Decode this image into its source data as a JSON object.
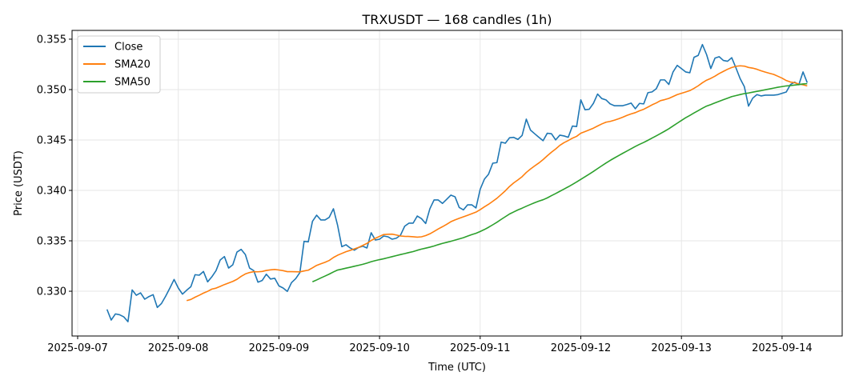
{
  "chart_data": {
    "type": "line",
    "title": "TRXUSDT — 168 candles (1h)",
    "xlabel": "Time (UTC)",
    "ylabel": "Price (USDT)",
    "start": "2025-09-07T07:00",
    "interval_hours": 1,
    "x_tick_labels": [
      "2025-09-07",
      "2025-09-08",
      "2025-09-09",
      "2025-09-10",
      "2025-09-11",
      "2025-09-12",
      "2025-09-13",
      "2025-09-14"
    ],
    "y_ticks": [
      0.33,
      0.335,
      0.34,
      0.345,
      0.35,
      0.355
    ],
    "y_tick_labels": [
      "0.330",
      "0.335",
      "0.340",
      "0.345",
      "0.350",
      "0.355"
    ],
    "ylim": [
      0.32556,
      0.35587
    ],
    "grid": true,
    "legend": {
      "placement": "top-left",
      "entries": [
        "Close",
        "SMA20",
        "SMA50"
      ]
    },
    "colors": {
      "Close": "#1f77b4",
      "SMA20": "#ff7f0e",
      "SMA50": "#2ca02c"
    },
    "sma_windows": {
      "SMA20": 20,
      "SMA50": 50
    },
    "series": [
      {
        "name": "Close",
        "values": [
          0.3282,
          0.32714,
          0.32775,
          0.32767,
          0.32746,
          0.32698,
          0.33013,
          0.3296,
          0.32984,
          0.32921,
          0.32947,
          0.32966,
          0.32839,
          0.32879,
          0.32952,
          0.33032,
          0.33117,
          0.33032,
          0.32971,
          0.3301,
          0.33045,
          0.33164,
          0.33159,
          0.33196,
          0.33093,
          0.33143,
          0.33204,
          0.3331,
          0.33344,
          0.3323,
          0.33262,
          0.33389,
          0.33415,
          0.33363,
          0.3323,
          0.33204,
          0.3309,
          0.33106,
          0.33169,
          0.33121,
          0.33129,
          0.33053,
          0.33032,
          0.32998,
          0.33085,
          0.33125,
          0.33185,
          0.33495,
          0.3349,
          0.33693,
          0.33754,
          0.33707,
          0.33707,
          0.33733,
          0.33818,
          0.33653,
          0.33442,
          0.33461,
          0.33429,
          0.33407,
          0.33434,
          0.33447,
          0.33429,
          0.3358,
          0.33508,
          0.33516,
          0.33548,
          0.3354,
          0.33516,
          0.33526,
          0.33556,
          0.33645,
          0.33675,
          0.33675,
          0.33746,
          0.3372,
          0.33672,
          0.33818,
          0.33905,
          0.33905,
          0.33871,
          0.33911,
          0.33953,
          0.33937,
          0.33831,
          0.33807,
          0.33857,
          0.33857,
          0.33826,
          0.34011,
          0.34111,
          0.34161,
          0.3427,
          0.34276,
          0.34479,
          0.34468,
          0.34522,
          0.34526,
          0.34506,
          0.34545,
          0.34707,
          0.34598,
          0.34562,
          0.34527,
          0.34493,
          0.34567,
          0.34562,
          0.34501,
          0.34548,
          0.3454,
          0.34527,
          0.34638,
          0.34633,
          0.34898,
          0.348,
          0.34805,
          0.34863,
          0.34956,
          0.34911,
          0.34898,
          0.34858,
          0.3484,
          0.3484,
          0.3484,
          0.34852,
          0.34866,
          0.3481,
          0.34863,
          0.34858,
          0.34969,
          0.34977,
          0.35009,
          0.35096,
          0.35096,
          0.35051,
          0.35175,
          0.3524,
          0.35208,
          0.35175,
          0.35167,
          0.3532,
          0.35339,
          0.35447,
          0.35347,
          0.35209,
          0.35312,
          0.35326,
          0.35289,
          0.35281,
          0.35316,
          0.35215,
          0.35109,
          0.3503,
          0.34836,
          0.34915,
          0.3495,
          0.34937,
          0.34945,
          0.34945,
          0.34945,
          0.3495,
          0.34963,
          0.34976,
          0.3505,
          0.35074,
          0.35048,
          0.35175,
          0.35069
        ]
      }
    ]
  }
}
